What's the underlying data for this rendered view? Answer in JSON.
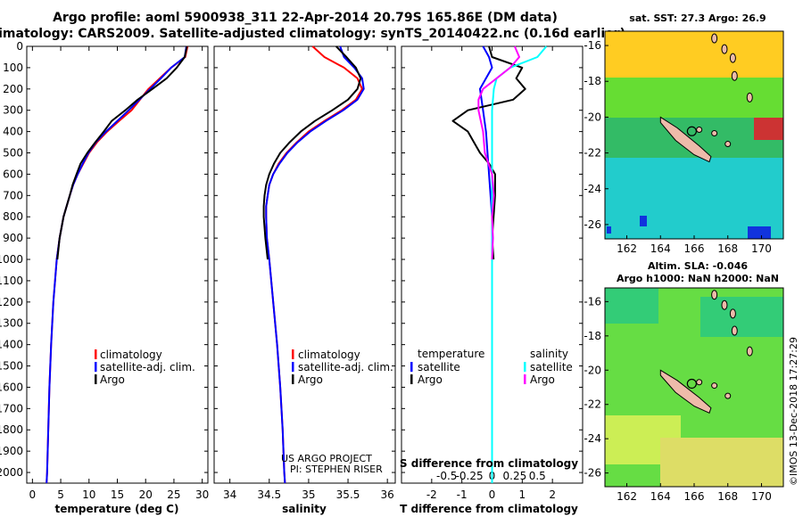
{
  "header": {
    "title_line1": "Argo profile: aoml 5900938_311 22-Apr-2014 20.79S 165.86E (DM data)",
    "title_line2": "Climatology: CARS2009. Satellite-adjusted climatology: synTS_20140422.nc (0.16d earlier)"
  },
  "credits": {
    "line1": "US ARGO PROJECT",
    "line2": "PI: STEPHEN RISER"
  },
  "watermark": "©IMOS 13-Dec-2018 17:27:29",
  "colors": {
    "climatology": "#ff0000",
    "satellite": "#0000ff",
    "argo": "#000000",
    "sal_satellite": "#00ffff",
    "sal_argo": "#ff00ff"
  },
  "chart_data": [
    {
      "type": "line",
      "id": "temperature",
      "xlabel": "temperature (deg C)",
      "xlim": [
        -1,
        31
      ],
      "xticks": [
        "0",
        "5",
        "10",
        "15",
        "20",
        "25",
        "30"
      ],
      "ylim": [
        0,
        2050
      ],
      "yticks": [
        "0",
        "100",
        "200",
        "300",
        "400",
        "500",
        "600",
        "700",
        "800",
        "900",
        "1000",
        "1100",
        "1200",
        "1300",
        "1400",
        "1500",
        "1600",
        "1700",
        "1800",
        "1900",
        "2000"
      ],
      "legend": [
        "climatology",
        "satellite-adj. clim.",
        "Argo"
      ],
      "series": [
        {
          "name": "climatology",
          "color": "#ff0000",
          "depth": [
            0,
            50,
            100,
            150,
            200,
            250,
            300,
            350,
            400,
            450,
            500,
            550,
            600,
            650,
            700,
            800,
            900,
            1000,
            1200,
            1400,
            1600,
            1800,
            2000,
            2050
          ],
          "values": [
            27.4,
            27,
            24.5,
            22.5,
            20.5,
            19,
            17.5,
            15.3,
            13.2,
            11.4,
            10,
            9,
            8,
            7.2,
            6.6,
            5.5,
            4.8,
            4.3,
            3.7,
            3.3,
            3,
            2.8,
            2.6,
            2.5
          ]
        },
        {
          "name": "satellite-adj. clim.",
          "color": "#0000ff",
          "depth": [
            0,
            50,
            100,
            150,
            200,
            250,
            300,
            350,
            400,
            450,
            500,
            550,
            600,
            650,
            700,
            800,
            900,
            1000,
            1200,
            1400,
            1600,
            1800,
            2000,
            2050
          ],
          "values": [
            27.2,
            26.9,
            24.5,
            22.7,
            20.8,
            18.9,
            17,
            15,
            13,
            11.2,
            9.9,
            8.9,
            8,
            7.2,
            6.6,
            5.5,
            4.8,
            4.3,
            3.7,
            3.3,
            3,
            2.8,
            2.6,
            2.5
          ]
        },
        {
          "name": "Argo",
          "color": "#000000",
          "depth": [
            0,
            50,
            100,
            150,
            200,
            250,
            300,
            350,
            400,
            450,
            500,
            550,
            600,
            650,
            700,
            800,
            900,
            1000
          ],
          "values": [
            27.3,
            26.9,
            25.5,
            23.7,
            21.2,
            18.6,
            16.4,
            14,
            12.6,
            11.1,
            9.7,
            8.5,
            7.8,
            7.1,
            6.6,
            5.5,
            4.8,
            4.4
          ]
        }
      ]
    },
    {
      "type": "line",
      "id": "salinity",
      "xlabel": "salinity",
      "xlim": [
        33.8,
        36.1
      ],
      "xticks": [
        "34",
        "34.5",
        "35",
        "35.5",
        "36"
      ],
      "ylim": [
        0,
        2050
      ],
      "legend": [
        "climatology",
        "satellite-adj. clim.",
        "Argo"
      ],
      "series": [
        {
          "name": "climatology",
          "color": "#ff0000",
          "depth": [
            0,
            50,
            100,
            150,
            200,
            250,
            300,
            350,
            400,
            450,
            500,
            550,
            600,
            650,
            700,
            750,
            800,
            900,
            1000,
            1200,
            1400,
            1600,
            1800,
            2000,
            2050
          ],
          "values": [
            35.05,
            35.2,
            35.45,
            35.62,
            35.68,
            35.6,
            35.42,
            35.2,
            35,
            34.85,
            34.72,
            34.62,
            34.55,
            34.5,
            34.48,
            34.46,
            34.46,
            34.47,
            34.5,
            34.55,
            34.6,
            34.64,
            34.67,
            34.69,
            34.7
          ]
        },
        {
          "name": "satellite-adj. clim.",
          "color": "#0000ff",
          "depth": [
            0,
            50,
            100,
            150,
            200,
            250,
            300,
            350,
            400,
            450,
            500,
            550,
            600,
            650,
            700,
            750,
            800,
            900,
            1000,
            1200,
            1400,
            1600,
            1800,
            2000,
            2050
          ],
          "values": [
            35.4,
            35.45,
            35.58,
            35.68,
            35.7,
            35.62,
            35.44,
            35.22,
            35.02,
            34.86,
            34.73,
            34.63,
            34.55,
            34.5,
            34.48,
            34.46,
            34.46,
            34.47,
            34.5,
            34.55,
            34.6,
            34.64,
            34.67,
            34.69,
            34.7
          ]
        },
        {
          "name": "Argo",
          "color": "#000000",
          "depth": [
            0,
            50,
            100,
            150,
            200,
            250,
            300,
            350,
            400,
            450,
            500,
            550,
            600,
            650,
            700,
            750,
            800,
            900,
            1000
          ],
          "values": [
            35.35,
            35.48,
            35.6,
            35.66,
            35.62,
            35.5,
            35.3,
            35.08,
            34.9,
            34.76,
            34.64,
            34.56,
            34.5,
            34.46,
            34.44,
            34.43,
            34.43,
            34.45,
            34.48
          ]
        }
      ]
    },
    {
      "type": "line",
      "id": "difference",
      "xlabel": "T difference from climatology",
      "xlabel2": "S difference from climatology",
      "xlim": [
        -3,
        3
      ],
      "xticks": [
        "-2",
        "-1",
        "0",
        "1",
        "2"
      ],
      "xticks2": [
        "-0.5",
        "-0.25",
        "0",
        "0.25",
        "0.5"
      ],
      "ylim": [
        0,
        2050
      ],
      "legend_left_title": "temperature",
      "legend_right_title": "salinity",
      "legend_left": [
        "satellite",
        "Argo"
      ],
      "legend_right": [
        "satellite",
        "Argo"
      ],
      "series": [
        {
          "name": "temperature satellite",
          "color": "#0000ff",
          "depth": [
            0,
            50,
            100,
            150,
            200,
            300,
            400,
            500,
            600,
            700,
            800,
            900,
            1000,
            1200,
            1500,
            2050
          ],
          "values": [
            -0.3,
            -0.1,
            0,
            -0.2,
            -0.4,
            -0.3,
            -0.2,
            -0.15,
            -0.1,
            -0.05,
            0,
            0,
            0,
            0,
            0,
            0
          ]
        },
        {
          "name": "temperature Argo",
          "color": "#000000",
          "depth": [
            0,
            50,
            100,
            150,
            200,
            250,
            300,
            350,
            400,
            450,
            500,
            550,
            600,
            700,
            800,
            900,
            1000
          ],
          "values": [
            -0.1,
            0,
            1,
            0.8,
            1.1,
            0.7,
            -0.8,
            -1.3,
            -0.8,
            -0.6,
            -0.4,
            -0.1,
            0.1,
            0.1,
            0.05,
            0,
            0.05
          ]
        },
        {
          "name": "salinity satellite",
          "color": "#00ffff",
          "depth": [
            0,
            50,
            100,
            150,
            200,
            300,
            400,
            500,
            600,
            700,
            800,
            900,
            1000,
            1200,
            1500,
            2050
          ],
          "values": [
            0.6,
            0.5,
            0.2,
            0.05,
            0.02,
            0,
            0,
            0,
            0,
            0,
            0,
            0,
            0,
            0,
            0,
            0
          ]
        },
        {
          "name": "salinity Argo",
          "color": "#ff00ff",
          "depth": [
            0,
            50,
            100,
            150,
            200,
            250,
            300,
            400,
            500,
            600,
            700,
            800,
            900,
            1000
          ],
          "values": [
            0.25,
            0.3,
            0.2,
            0.05,
            -0.1,
            -0.15,
            -0.15,
            -0.1,
            -0.08,
            0,
            0.02,
            0,
            0.01,
            0
          ]
        }
      ]
    }
  ],
  "maps": [
    {
      "id": "sst",
      "label_line1": "sat. SST: 27.3 Argo: 26.9",
      "label_line2": "",
      "xticks": [
        "162",
        "164",
        "166",
        "168",
        "170"
      ],
      "yticks": [
        "-16",
        "-18",
        "-20",
        "-22",
        "-24",
        "-26"
      ]
    },
    {
      "id": "sla",
      "label_line1": "Altim. SLA: -0.046",
      "label_line2": "Argo h1000: NaN h2000: NaN",
      "xticks": [
        "162",
        "164",
        "166",
        "168",
        "170"
      ],
      "yticks": [
        "-16",
        "-18",
        "-20",
        "-22",
        "-24",
        "-26"
      ]
    }
  ]
}
